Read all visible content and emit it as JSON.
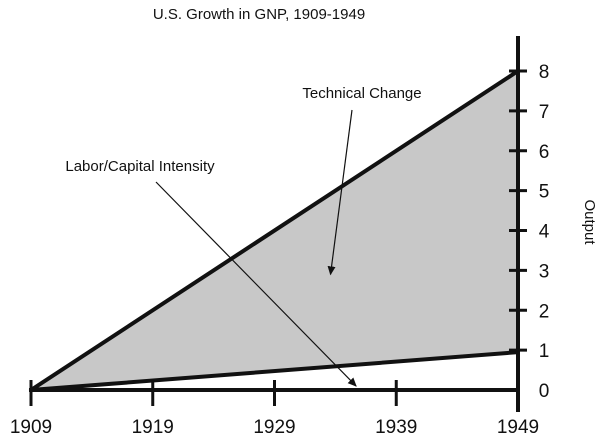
{
  "chart_data": {
    "type": "area",
    "title": "U.S. Growth in GNP, 1909-1949",
    "xlabel": "",
    "ylabel": "Output",
    "x_ticks": [
      "1909",
      "1919",
      "1929",
      "1939",
      "1949"
    ],
    "y_ticks": [
      "0",
      "1",
      "2",
      "3",
      "4",
      "5",
      "6",
      "7",
      "8"
    ],
    "xlim": [
      1909,
      1949
    ],
    "ylim": [
      0,
      8
    ],
    "y_axis_position": "right",
    "grid": false,
    "series": [
      {
        "x": [
          1909,
          1949
        ],
        "values": [
          0,
          8
        ]
      },
      {
        "x": [
          1909,
          1949
        ],
        "values": [
          0,
          0.95
        ]
      }
    ],
    "fill_between_series_color": "#c8c8c8",
    "annotations": [
      {
        "text": "Technical Change",
        "arrow_to": {
          "x": 1933.6,
          "y": 2.9
        }
      },
      {
        "text": "Labor/Capital Intensity",
        "arrow_to": {
          "x": 1935.7,
          "y": 0.1
        }
      }
    ]
  }
}
